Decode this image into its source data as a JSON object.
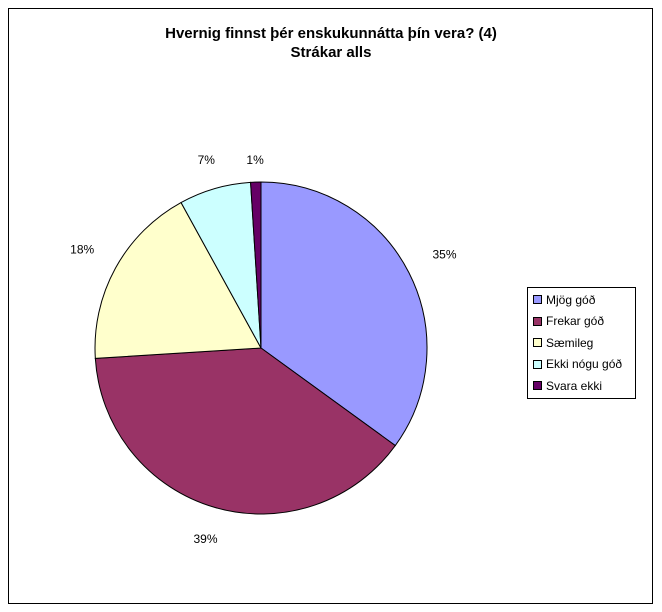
{
  "chart_data": {
    "type": "pie",
    "title": "Hvernig finnst þér enskukunnátta þín vera? (4)",
    "subtitle": "Strákar alls",
    "categories": [
      "Mjög góð",
      "Frekar góð",
      "Sæmileg",
      "Ekki nógu góð",
      "Svara ekki"
    ],
    "values": [
      35,
      39,
      18,
      7,
      1
    ],
    "data_labels": [
      "35%",
      "39%",
      "18%",
      "7%",
      "1%"
    ],
    "colors": [
      "#9999ff",
      "#993366",
      "#ffffcc",
      "#ccffff",
      "#660066"
    ],
    "legend_position": "right"
  }
}
